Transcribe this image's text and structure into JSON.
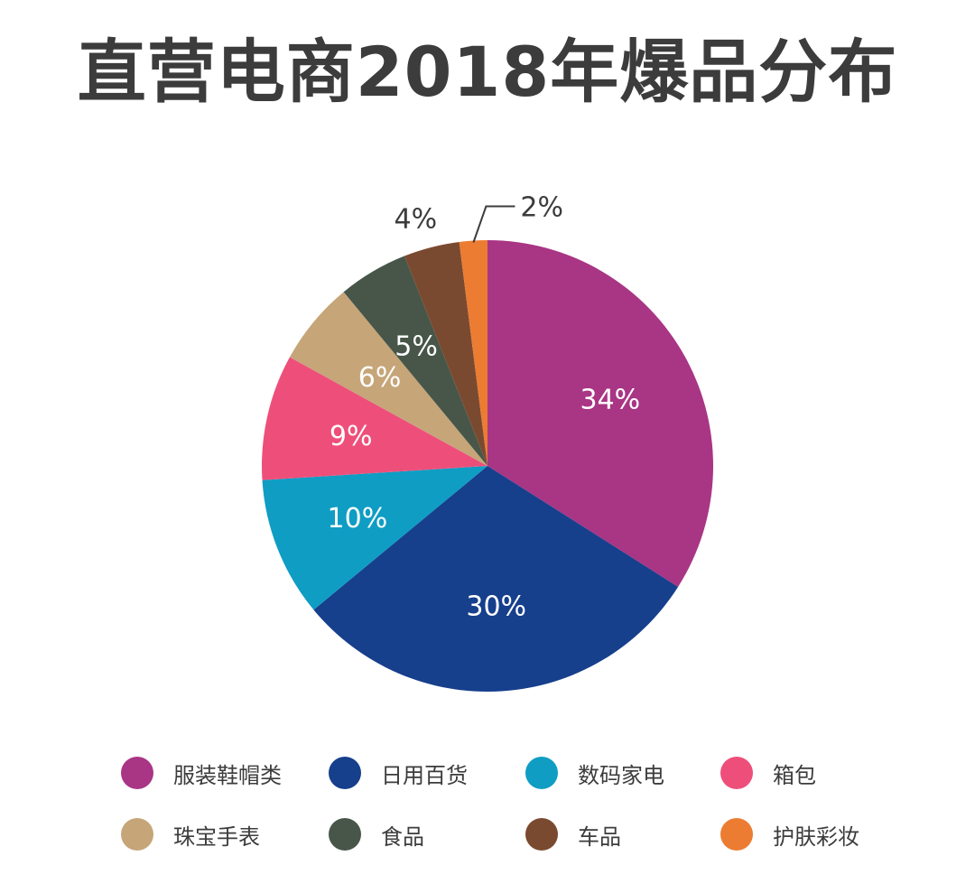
{
  "chart_data": {
    "type": "pie",
    "title": "直营电商2018年爆品分布",
    "slices": [
      {
        "label": "服装鞋帽类",
        "value": 34,
        "display": "34%",
        "color": "#a93585"
      },
      {
        "label": "日用百货",
        "value": 30,
        "display": "30%",
        "color": "#163f8c"
      },
      {
        "label": "数码家电",
        "value": 10,
        "display": "10%",
        "color": "#0f9dc4"
      },
      {
        "label": "箱包",
        "value": 9,
        "display": "9%",
        "color": "#ee4f7a"
      },
      {
        "label": "珠宝手表",
        "value": 6,
        "display": "6%",
        "color": "#c6a578"
      },
      {
        "label": "食品",
        "value": 5,
        "display": "5%",
        "color": "#475649"
      },
      {
        "label": "车品",
        "value": 4,
        "display": "4%",
        "color": "#7a4a30"
      },
      {
        "label": "护肤彩妆",
        "value": 2,
        "display": "2%",
        "color": "#ec7c31"
      }
    ],
    "legend_position": "bottom",
    "start_angle": "top, clockwise"
  }
}
